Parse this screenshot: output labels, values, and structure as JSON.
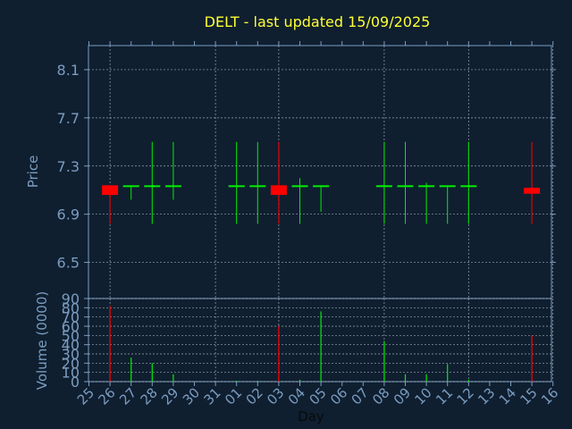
{
  "chart_data": {
    "type": "candlestick",
    "title": "DELT - last updated 15/09/2025",
    "xlabel": "Day",
    "price_panel": {
      "ylabel": "Price",
      "ylim": [
        6.2,
        8.3
      ],
      "yticks": [
        "6.5",
        "6.9",
        "7.3",
        "7.7",
        "8.1"
      ]
    },
    "volume_panel": {
      "ylabel": "Volume (0000)",
      "ylim": [
        0,
        90
      ],
      "yticks": [
        "0",
        "10",
        "20",
        "30",
        "40",
        "50",
        "60",
        "70",
        "80",
        "90"
      ]
    },
    "x_ticks": [
      "25",
      "26",
      "27",
      "28",
      "29",
      "30",
      "31",
      "01",
      "02",
      "03",
      "04",
      "05",
      "06",
      "07",
      "08",
      "09",
      "10",
      "11",
      "12",
      "13",
      "14",
      "15",
      "16"
    ],
    "candles": [
      {
        "day": "26",
        "open": 7.14,
        "close": 7.06,
        "high": 7.14,
        "low": 6.82,
        "volume": 82
      },
      {
        "day": "27",
        "open": 7.14,
        "close": 7.14,
        "high": 7.14,
        "low": 7.02,
        "volume": 26
      },
      {
        "day": "28",
        "open": 7.14,
        "close": 7.14,
        "high": 7.5,
        "low": 6.82,
        "volume": 20
      },
      {
        "day": "29",
        "open": 7.14,
        "close": 7.14,
        "high": 7.5,
        "low": 7.02,
        "volume": 8
      },
      {
        "day": "01",
        "open": 7.14,
        "close": 7.14,
        "high": 7.5,
        "low": 6.82,
        "volume": 1
      },
      {
        "day": "02",
        "open": 7.14,
        "close": 7.14,
        "high": 7.5,
        "low": 6.82,
        "volume": 1
      },
      {
        "day": "03",
        "open": 7.14,
        "close": 7.06,
        "high": 7.5,
        "low": 6.82,
        "volume": 60
      },
      {
        "day": "04",
        "open": 7.14,
        "close": 7.14,
        "high": 7.2,
        "low": 6.82,
        "volume": 2
      },
      {
        "day": "05",
        "open": 7.14,
        "close": 7.14,
        "high": 7.14,
        "low": 6.92,
        "volume": 76
      },
      {
        "day": "08",
        "open": 7.14,
        "close": 7.14,
        "high": 7.5,
        "low": 6.82,
        "volume": 44
      },
      {
        "day": "09",
        "open": 7.14,
        "close": 7.14,
        "high": 7.5,
        "low": 6.82,
        "volume": 8
      },
      {
        "day": "10",
        "open": 7.14,
        "close": 7.14,
        "high": 7.16,
        "low": 6.82,
        "volume": 8
      },
      {
        "day": "11",
        "open": 7.14,
        "close": 7.14,
        "high": 7.14,
        "low": 6.82,
        "volume": 19
      },
      {
        "day": "12",
        "open": 7.14,
        "close": 7.14,
        "high": 7.5,
        "low": 6.82,
        "volume": 2
      },
      {
        "day": "15",
        "open": 7.12,
        "close": 7.07,
        "high": 7.5,
        "low": 6.82,
        "volume": 50
      }
    ],
    "grid": true,
    "colors": {
      "background": "#0f1f30",
      "axis": "#7b9cc0",
      "grid": "#c8d2dc",
      "title": "#ffff33",
      "up": "#00ee00",
      "down": "#ff0000",
      "xlabel": "#0a0a0a"
    }
  }
}
